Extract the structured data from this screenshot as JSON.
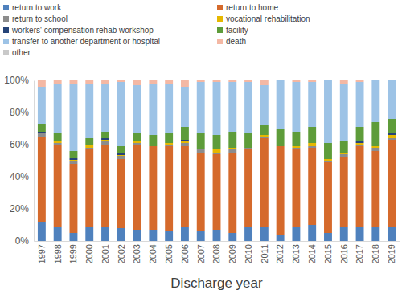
{
  "chart_data": {
    "type": "bar",
    "stacked": true,
    "legend": "top",
    "grid": false,
    "x_label": "Discharge year",
    "categories": [
      "1997",
      "1998",
      "1999",
      "2000",
      "2001",
      "2002",
      "2003",
      "2004",
      "2005",
      "2006",
      "2007",
      "2008",
      "2009",
      "2010",
      "2011",
      "2012",
      "2013",
      "2014",
      "2015",
      "2016",
      "2017",
      "2018",
      "2019"
    ],
    "ylim": [
      0,
      100
    ],
    "yticks": [
      {
        "value": 0,
        "label": "0%"
      },
      {
        "value": 20,
        "label": "20%"
      },
      {
        "value": 40,
        "label": "40%"
      },
      {
        "value": 60,
        "label": "60%"
      },
      {
        "value": 80,
        "label": "80%"
      },
      {
        "value": 100,
        "label": "100%"
      }
    ],
    "series": [
      {
        "name": "return to work",
        "color": "#4f81bd",
        "values": [
          12,
          9,
          5,
          9,
          9,
          8,
          7,
          7,
          6,
          9,
          6,
          7,
          5,
          9,
          9,
          4,
          9,
          10,
          5,
          9,
          9,
          9,
          9
        ]
      },
      {
        "name": "return to home",
        "color": "#d56a2c",
        "values": [
          53,
          51,
          43,
          48,
          51,
          43,
          53,
          52,
          53,
          50,
          49,
          47,
          50,
          48,
          55,
          55,
          48,
          48,
          44,
          43,
          50,
          47,
          54
        ]
      },
      {
        "name": "return to school",
        "color": "#8c8c8c",
        "values": [
          2,
          1,
          2,
          1,
          2,
          2,
          1,
          0,
          1,
          2,
          2,
          1,
          2,
          1,
          1,
          0,
          1,
          1,
          1,
          2,
          1,
          2,
          1
        ]
      },
      {
        "name": "vocational rehabilitation",
        "color": "#e6b800",
        "values": [
          0,
          1,
          0.5,
          2,
          1,
          0.5,
          1,
          0,
          1,
          1,
          0,
          2,
          1,
          0,
          1,
          0,
          1,
          2,
          1,
          1,
          1,
          1,
          2
        ]
      },
      {
        "name": "workers' compensation rehab workshop",
        "color": "#264478",
        "values": [
          1,
          0,
          1,
          0,
          1,
          1,
          0,
          0,
          0,
          1,
          0,
          0,
          0,
          0,
          0,
          0,
          0,
          0,
          0,
          0,
          1,
          0,
          1
        ]
      },
      {
        "name": "facility",
        "color": "#5e9c3a",
        "values": [
          5,
          5,
          4.5,
          4,
          4,
          4.5,
          5,
          7,
          6,
          8,
          10,
          9,
          10,
          9,
          6,
          11,
          9,
          10,
          10,
          7,
          9,
          15,
          9
        ]
      },
      {
        "name": "transfer to another department or hospital",
        "color": "#9dc3e6",
        "values": [
          23,
          31,
          42,
          34,
          30,
          40,
          30,
          32,
          31,
          25,
          32,
          33,
          31,
          32,
          25,
          30,
          31,
          28,
          39,
          36,
          28,
          26,
          24
        ]
      },
      {
        "name": "death",
        "color": "#f4b8a4",
        "values": [
          4,
          2,
          2,
          2,
          2,
          1,
          3,
          2,
          2,
          4,
          1,
          1,
          1,
          1,
          3,
          0,
          1,
          1,
          0,
          2,
          1,
          0,
          0
        ]
      },
      {
        "name": "other",
        "color": "#c9c9c9",
        "values": [
          0,
          0,
          0,
          0,
          0,
          0,
          0,
          0,
          0,
          0,
          0,
          0,
          0,
          0,
          0,
          0,
          0,
          0,
          0,
          0,
          0,
          0,
          0
        ]
      }
    ]
  }
}
